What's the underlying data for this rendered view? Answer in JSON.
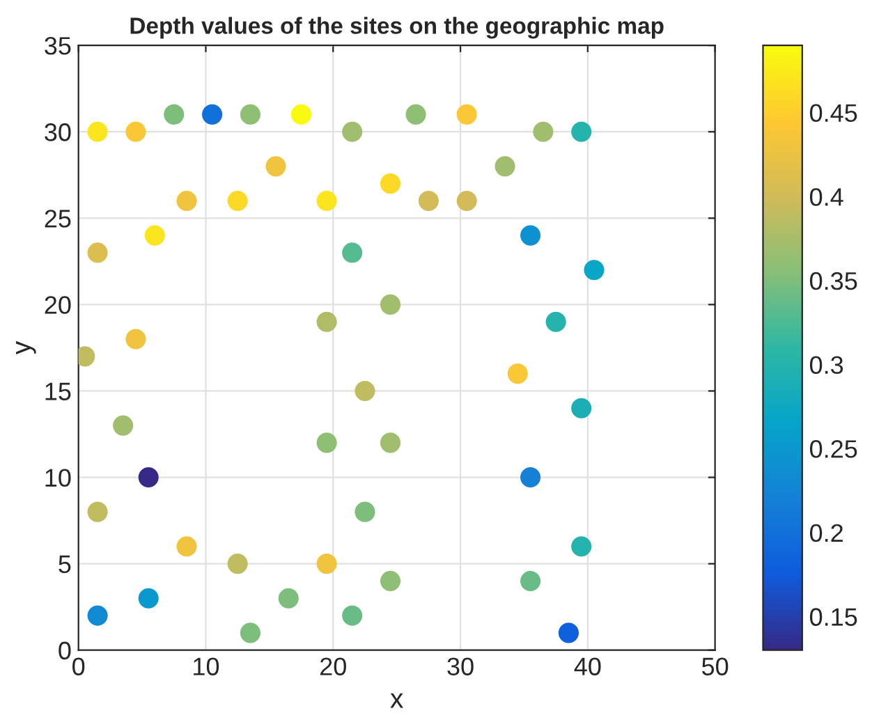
{
  "chart_data": {
    "type": "scatter",
    "title": "Depth values of the sites on the geographic map",
    "xlabel": "x",
    "ylabel": "y",
    "x": [
      1.5,
      4.5,
      7.5,
      10.5,
      13.5,
      17.5,
      21.5,
      26.5,
      30.5,
      36.5,
      39.5,
      15.5,
      33.5,
      8.5,
      12.5,
      19.5,
      24.5,
      27.5,
      30.5,
      1.5,
      6,
      21.5,
      35.5,
      40.5,
      24.5,
      19.5,
      37.5,
      0.5,
      4.5,
      34.5,
      22.5,
      3.5,
      19.5,
      24.5,
      39.5,
      5.5,
      35.5,
      1.5,
      22.5,
      8.5,
      12.5,
      19.5,
      39.5,
      1.5,
      5.5,
      13.5,
      16.5,
      21.5,
      24.5,
      35.5,
      38.5
    ],
    "values": [
      30,
      30,
      31,
      31,
      31,
      31,
      30,
      31,
      31,
      30,
      30,
      28,
      28,
      26,
      26,
      26,
      27,
      26,
      26,
      23,
      24,
      23,
      24,
      22,
      20,
      19,
      19,
      17,
      18,
      16,
      15,
      13,
      12,
      12,
      14,
      10,
      10,
      8,
      8,
      6,
      5,
      5,
      6,
      2,
      3,
      1,
      3,
      2,
      4,
      4,
      1
    ],
    "cvalues": [
      0.47,
      0.44,
      0.35,
      0.2,
      0.36,
      0.49,
      0.37,
      0.36,
      0.44,
      0.37,
      0.3,
      0.43,
      0.37,
      0.43,
      0.46,
      0.47,
      0.46,
      0.4,
      0.4,
      0.41,
      0.47,
      0.33,
      0.24,
      0.27,
      0.37,
      0.38,
      0.3,
      0.39,
      0.43,
      0.44,
      0.39,
      0.37,
      0.36,
      0.37,
      0.29,
      0.13,
      0.22,
      0.39,
      0.35,
      0.43,
      0.39,
      0.43,
      0.3,
      0.23,
      0.25,
      0.35,
      0.35,
      0.34,
      0.36,
      0.34,
      0.18
    ],
    "xlim": [
      0,
      50
    ],
    "xticks": [
      0,
      10,
      20,
      30,
      40,
      50
    ],
    "ylim": [
      0,
      35
    ],
    "yticks": [
      0,
      5,
      10,
      15,
      20,
      25,
      30,
      35
    ],
    "clim": [
      0.13,
      0.49
    ],
    "cticks": [
      0.15,
      0.2,
      0.25,
      0.3,
      0.35,
      0.4,
      0.45
    ],
    "grid": true,
    "marker": "circle"
  }
}
